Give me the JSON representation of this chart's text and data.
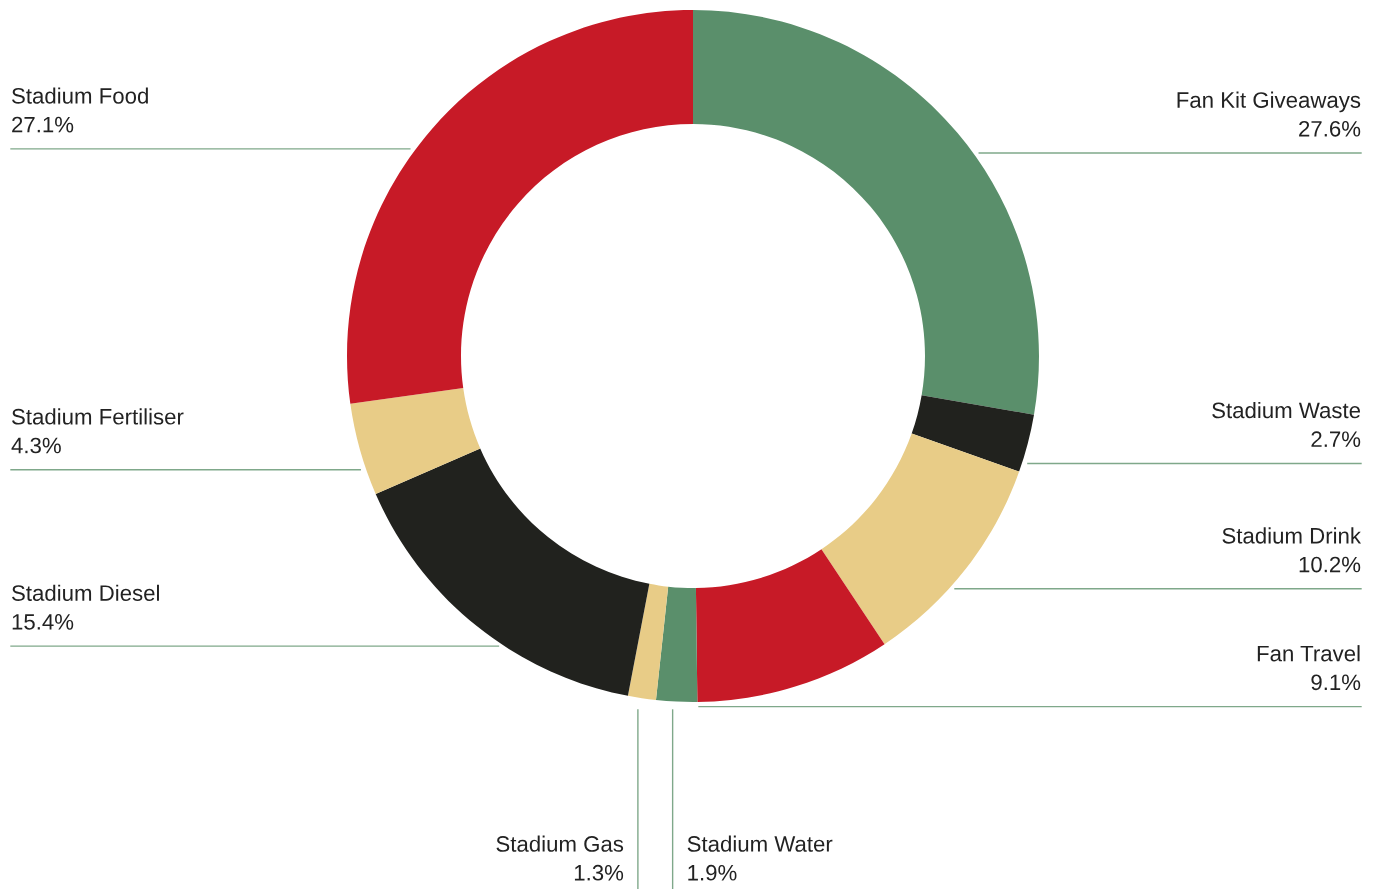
{
  "chart_data": {
    "type": "donut",
    "categories": [
      "Fan Kit Giveaways",
      "Stadium Waste",
      "Stadium Drink",
      "Fan Travel",
      "Stadium Water",
      "Stadium Gas",
      "Stadium Diesel",
      "Stadium Fertiliser",
      "Stadium Food"
    ],
    "values": [
      27.6,
      2.7,
      10.2,
      9.1,
      1.9,
      1.3,
      15.4,
      4.3,
      27.1
    ],
    "colors": [
      "#5a8f6b",
      "#21221e",
      "#e8cc87",
      "#c71a27",
      "#5a8f6b",
      "#e8cc87",
      "#21221e",
      "#e8cc87",
      "#c71a27"
    ],
    "value_labels": [
      "27.6%",
      "2.7%",
      "10.2%",
      "9.1%",
      "1.9%",
      "1.3%",
      "15.4%",
      "4.3%",
      "27.1%"
    ],
    "legend": false
  }
}
